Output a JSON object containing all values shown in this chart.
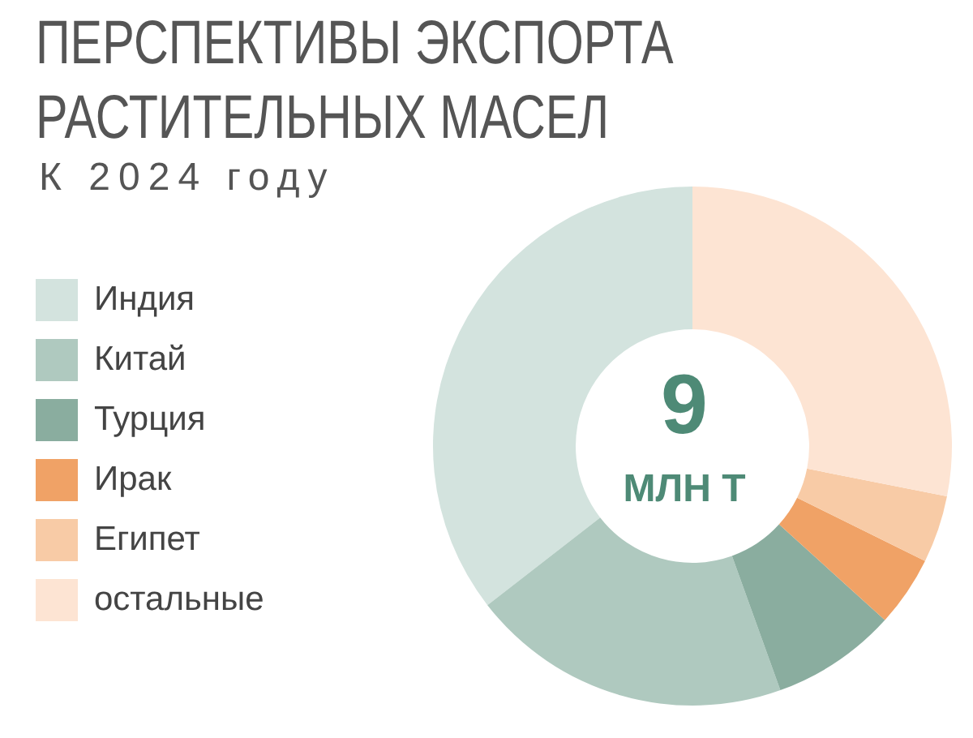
{
  "chart_data": {
    "type": "donut",
    "title": "ПЕРСПЕКТИВЫ ЭКСПОРТА РАСТИТЕЛЬНЫХ МАСЕЛ",
    "subtitle": "К 2024 году",
    "categories": [
      "Индия",
      "Китай",
      "Турция",
      "Ирак",
      "Египет",
      "остальные"
    ],
    "values": [
      35.5,
      20,
      7.8,
      4.4,
      4.2,
      28.1
    ],
    "colors": [
      "#d3e3de",
      "#afc9bf",
      "#8aad9f",
      "#f0a266",
      "#f8cba6",
      "#fde4d3"
    ],
    "annotations": [
      "9",
      "МЛН Т"
    ],
    "legend": "left"
  }
}
